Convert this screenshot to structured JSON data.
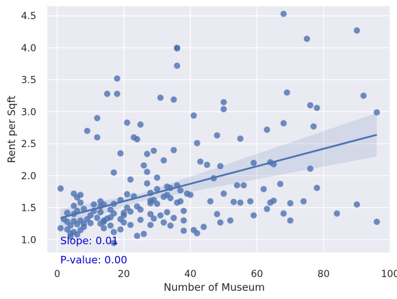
{
  "chart_data": {
    "type": "scatter",
    "title": "",
    "xlabel": "Number of Museum",
    "ylabel": "Rent per Sqft",
    "xlim": [
      -3,
      100
    ],
    "ylim": [
      0.8,
      4.65
    ],
    "xticks": [
      0,
      20,
      40,
      60,
      80,
      100
    ],
    "xtick_labels": [
      "0",
      "20",
      "40",
      "60",
      "80",
      "100"
    ],
    "yticks": [
      1.0,
      1.5,
      2.0,
      2.5,
      3.0,
      3.5,
      4.0,
      4.5
    ],
    "ytick_labels": [
      "1.0",
      "1.5",
      "2.0",
      "2.5",
      "3.0",
      "3.5",
      "4.0",
      "4.5"
    ],
    "grid": true,
    "background": "#eaeaf2",
    "point_color": "#4c72b0",
    "line_color": "#4c72b0",
    "band_color": "#4c72b0",
    "annotation_color": "#0000cc",
    "annotations": [
      "Slope: 0.01",
      "P-value: 0.00"
    ],
    "regression": {
      "x": [
        1,
        96
      ],
      "y": [
        1.34,
        2.64
      ],
      "ci_lower": [
        1.18,
        2.3
      ],
      "ci_upper": [
        1.48,
        2.98
      ],
      "ci_mid_x": 25,
      "ci_mid_lower": 1.6,
      "ci_mid_upper": 1.72
    },
    "x": [
      1,
      1,
      2,
      3,
      3,
      3,
      4,
      4,
      4,
      5,
      5,
      5,
      5,
      5,
      6,
      6,
      6,
      6,
      7,
      7,
      7,
      7,
      8,
      8,
      8,
      9,
      9,
      10,
      10,
      11,
      11,
      12,
      12,
      12,
      13,
      13,
      13,
      13,
      14,
      14,
      14,
      14,
      15,
      15,
      16,
      16,
      16,
      17,
      17,
      17,
      17,
      17,
      18,
      18,
      19,
      19,
      19,
      19,
      20,
      20,
      20,
      21,
      21,
      21,
      22,
      22,
      22,
      23,
      23,
      24,
      24,
      24,
      25,
      25,
      25,
      26,
      26,
      27,
      27,
      27,
      28,
      28,
      28,
      28,
      28,
      29,
      29,
      29,
      30,
      30,
      30,
      31,
      31,
      32,
      32,
      32,
      33,
      33,
      33,
      34,
      34,
      34,
      35,
      35,
      35,
      36,
      36,
      36,
      36,
      36,
      37,
      37,
      38,
      38,
      38,
      39,
      40,
      41,
      41,
      42,
      42,
      43,
      44,
      45,
      46,
      47,
      48,
      48,
      49,
      49,
      50,
      50,
      50,
      52,
      53,
      54,
      55,
      55,
      56,
      58,
      59,
      59,
      62,
      63,
      63,
      64,
      64,
      65,
      65,
      67,
      68,
      68,
      68,
      69,
      70,
      70,
      74,
      75,
      76,
      76,
      77,
      78,
      78,
      84,
      90,
      90,
      92,
      96,
      96
    ],
    "y": [
      1.8,
      1.18,
      1.32,
      1.42,
      1.28,
      1.16,
      1.05,
      1.22,
      1.1,
      1.72,
      1.53,
      1.4,
      1.29,
      1.12,
      1.66,
      1.45,
      1.24,
      1.08,
      1.7,
      1.58,
      1.3,
      1.15,
      1.48,
      1.2,
      1.25,
      2.7,
      1.32,
      1.38,
      1.26,
      1.55,
      1.45,
      2.9,
      2.6,
      1.34,
      1.6,
      1.52,
      1.43,
      1.25,
      1.3,
      1.18,
      1.55,
      1.28,
      3.28,
      1.33,
      1.47,
      1.35,
      1.22,
      2.05,
      1.56,
      1.41,
      1.12,
      0.95,
      3.52,
      3.28,
      2.35,
      1.62,
      1.16,
      1.32,
      1.42,
      1.27,
      1.38,
      2.83,
      1.71,
      1.5,
      1.94,
      1.44,
      1.23,
      2.6,
      1.68,
      2.57,
      1.52,
      1.06,
      2.8,
      1.47,
      1.31,
      2.16,
      1.09,
      2.34,
      2.06,
      1.88,
      1.73,
      1.61,
      1.57,
      1.4,
      1.23,
      2.39,
      1.62,
      1.33,
      1.97,
      1.79,
      1.56,
      3.22,
      1.38,
      2.24,
      1.67,
      1.27,
      1.83,
      1.7,
      1.43,
      1.81,
      1.65,
      1.22,
      3.19,
      2.4,
      1.34,
      4.0,
      3.99,
      3.72,
      1.85,
      1.58,
      1.6,
      1.77,
      1.45,
      1.3,
      1.14,
      1.72,
      1.7,
      2.94,
      1.15,
      2.51,
      1.1,
      2.22,
      1.2,
      2.17,
      1.6,
      1.96,
      2.63,
      1.4,
      2.15,
      1.27,
      3.15,
      3.04,
      1.72,
      1.3,
      1.59,
      1.85,
      2.58,
      1.58,
      1.85,
      1.6,
      2.2,
      1.38,
      1.79,
      1.48,
      2.72,
      2.21,
      1.58,
      1.61,
      2.18,
      1.87,
      2.82,
      1.41,
      4.53,
      3.3,
      1.57,
      1.3,
      1.6,
      4.14,
      3.1,
      2.11,
      2.77,
      3.06,
      1.81,
      1.41,
      4.27,
      1.55,
      3.25,
      2.99,
      1.28
    ]
  }
}
